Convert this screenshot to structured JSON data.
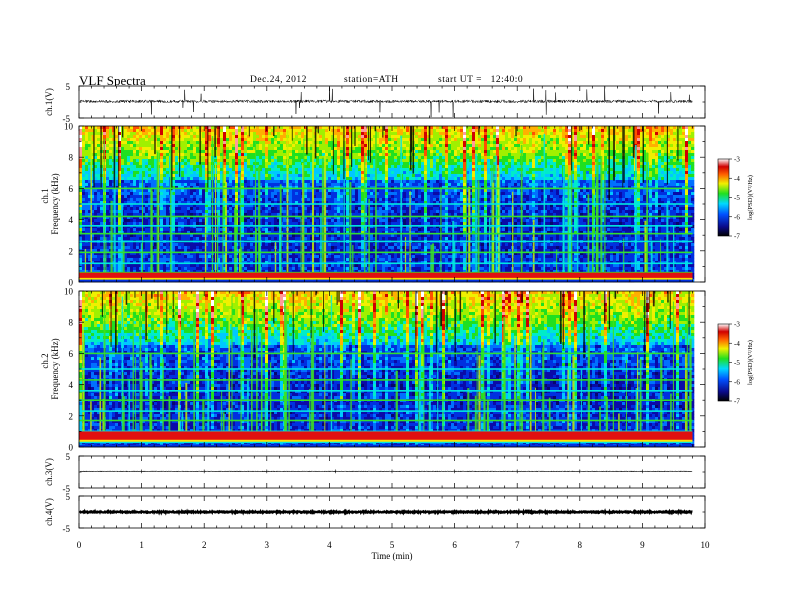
{
  "header": {
    "title": "VLF Spectra",
    "date": "Dec.24, 2012",
    "station": "station=ATH",
    "start": "start UT =   12:40:0"
  },
  "chart_data": [
    {
      "type": "line",
      "panel": "ch1-waveform",
      "ylabel": "ch.1(V)",
      "ylim": [
        -5,
        5
      ],
      "yticks": [
        "5",
        "-5"
      ],
      "xlim": [
        0,
        10
      ],
      "data_end_min": 9.8,
      "baseline": 0.2,
      "description_series": "broadband noise waveform with impulsive spikes"
    },
    {
      "type": "heatmap",
      "panel": "ch1-spectrogram",
      "ylabel": "Frequency (kHz)",
      "channel_label": "ch.1",
      "ylim": [
        0,
        10
      ],
      "yticks": [
        "0",
        "2",
        "4",
        "6",
        "8",
        "10"
      ],
      "xlim": [
        0,
        10
      ],
      "data_end_min": 9.8,
      "colorbar": {
        "label": "log(PSD)(V²/Hz)",
        "ticks": [
          "-3",
          "-4",
          "-5",
          "-6",
          "-7"
        ],
        "range": [
          -7,
          -3
        ]
      },
      "horizontal_lines_kHz": [
        0.3,
        0.6,
        1.2,
        1.9,
        2.6,
        3.1,
        3.6,
        4.2,
        5.0,
        6.0
      ],
      "bright_band_kHz": [
        0.2,
        0.6
      ]
    },
    {
      "type": "heatmap",
      "panel": "ch2-spectrogram",
      "ylabel": "Frequency (kHz)",
      "channel_label": "ch.2",
      "ylim": [
        0,
        10
      ],
      "yticks": [
        "0",
        "2",
        "4",
        "6",
        "8",
        "10"
      ],
      "xlim": [
        0,
        10
      ],
      "data_end_min": 9.8,
      "colorbar": {
        "label": "log(PSD)(V²/Hz)",
        "ticks": [
          "-3",
          "-4",
          "-5",
          "-6",
          "-7"
        ],
        "range": [
          -7,
          -3
        ]
      },
      "horizontal_lines_kHz": [
        0.3,
        0.6,
        1.0,
        1.7,
        2.3,
        3.0,
        3.6,
        4.3,
        5.0,
        6.0
      ],
      "bright_band_kHz": [
        0.4,
        1.0
      ]
    },
    {
      "type": "line",
      "panel": "ch3-waveform",
      "ylabel": "ch.3(V)",
      "ylim": [
        -5,
        5
      ],
      "yticks": [
        "5",
        "-5"
      ],
      "xlim": [
        0,
        10
      ],
      "data_end_min": 9.8,
      "baseline": 0.2
    },
    {
      "type": "line",
      "panel": "ch4-waveform",
      "ylabel": "ch.4(V)",
      "ylim": [
        -5,
        5
      ],
      "yticks": [
        "5",
        "-5"
      ],
      "xlim": [
        0,
        10
      ],
      "data_end_min": 9.8,
      "baseline": 0.0
    }
  ],
  "xaxis": {
    "label": "Time (min)",
    "ticks": [
      "0",
      "1",
      "2",
      "3",
      "4",
      "5",
      "6",
      "7",
      "8",
      "9",
      "10"
    ]
  }
}
